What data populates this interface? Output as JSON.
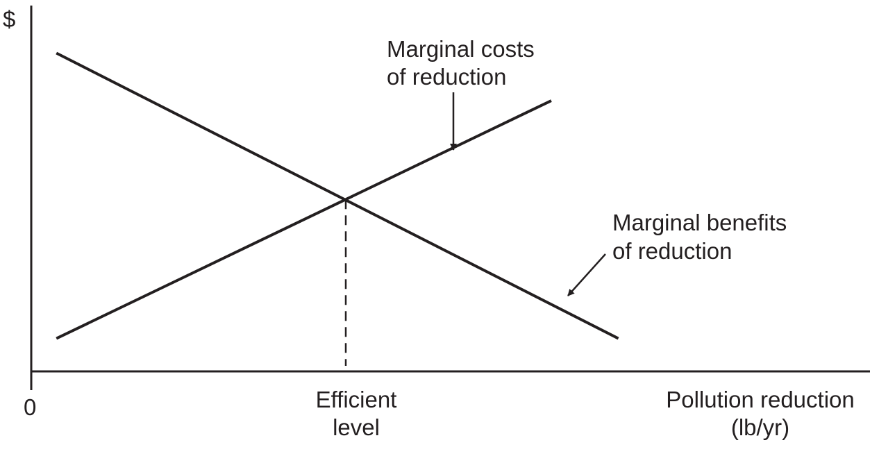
{
  "chart_data": {
    "type": "line",
    "title": "",
    "ylabel": "$",
    "xlabel_lines": [
      "Pollution reduction",
      "(lb/yr)"
    ],
    "origin_label": "0",
    "xlim": [
      0,
      10
    ],
    "ylim": [
      0,
      10
    ],
    "series": [
      {
        "name_lines": [
          "Marginal costs",
          "of reduction"
        ],
        "x": [
          0.3,
          6.2
        ],
        "y": [
          0.9,
          7.4
        ]
      },
      {
        "name_lines": [
          "Marginal benefits",
          "of reduction"
        ],
        "x": [
          0.3,
          7.0
        ],
        "y": [
          8.7,
          0.9
        ]
      }
    ],
    "equilibrium": {
      "label_lines": [
        "Efficient",
        "level"
      ],
      "x": 3.75,
      "y": 4.7
    }
  },
  "colors": {
    "ink": "#231f20",
    "background": "#ffffff"
  }
}
